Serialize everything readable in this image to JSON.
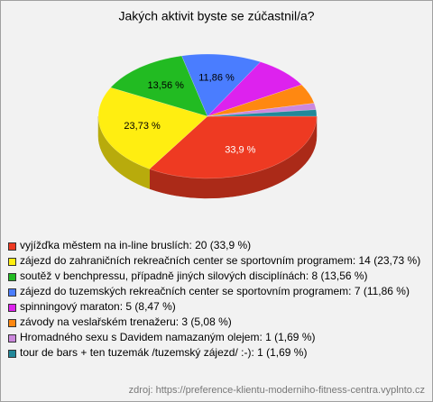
{
  "chart_data": {
    "type": "pie3d",
    "title": "Jakých aktivit byste se zúčastnil/a?",
    "categories": [
      "vyjížďka městem na in-line bruslích: 20 (33,9 %)",
      "zájezd do zahraničních rekreačních center se sportovním programem: 14 (23,73 %)",
      "soutěž v benchpressu, případně jiných silových disciplínách: 8 (13,56 %)",
      "zájezd do tuzemských rekreačních center se sportovním programem: 7 (11,86 %)",
      "spinningový maraton: 5 (8,47 %)",
      "závody na veslařském trenažeru: 3 (5,08 %)",
      "Hromadného sexu s Davidem namazaným olejem: 1 (1,69 %)",
      "tour de bars + ten tuzemák /tuzemský zájezd/ :-): 1 (1,69 %)"
    ],
    "values": [
      33.9,
      23.73,
      13.56,
      11.86,
      8.47,
      5.08,
      1.69,
      1.69
    ],
    "value_labels": [
      "33,9 %",
      "23,73 %",
      "13,56 %",
      "11,86 %",
      null,
      null,
      null,
      null
    ],
    "colors": [
      "#ee3a22",
      "#ffee11",
      "#22bb22",
      "#4a7dff",
      "#dd22ee",
      "#ff8811",
      "#cc88dd",
      "#228899"
    ],
    "source": "zdroj: https://preference-klientu-moderniho-fitness-centra.vyplnto.cz"
  }
}
